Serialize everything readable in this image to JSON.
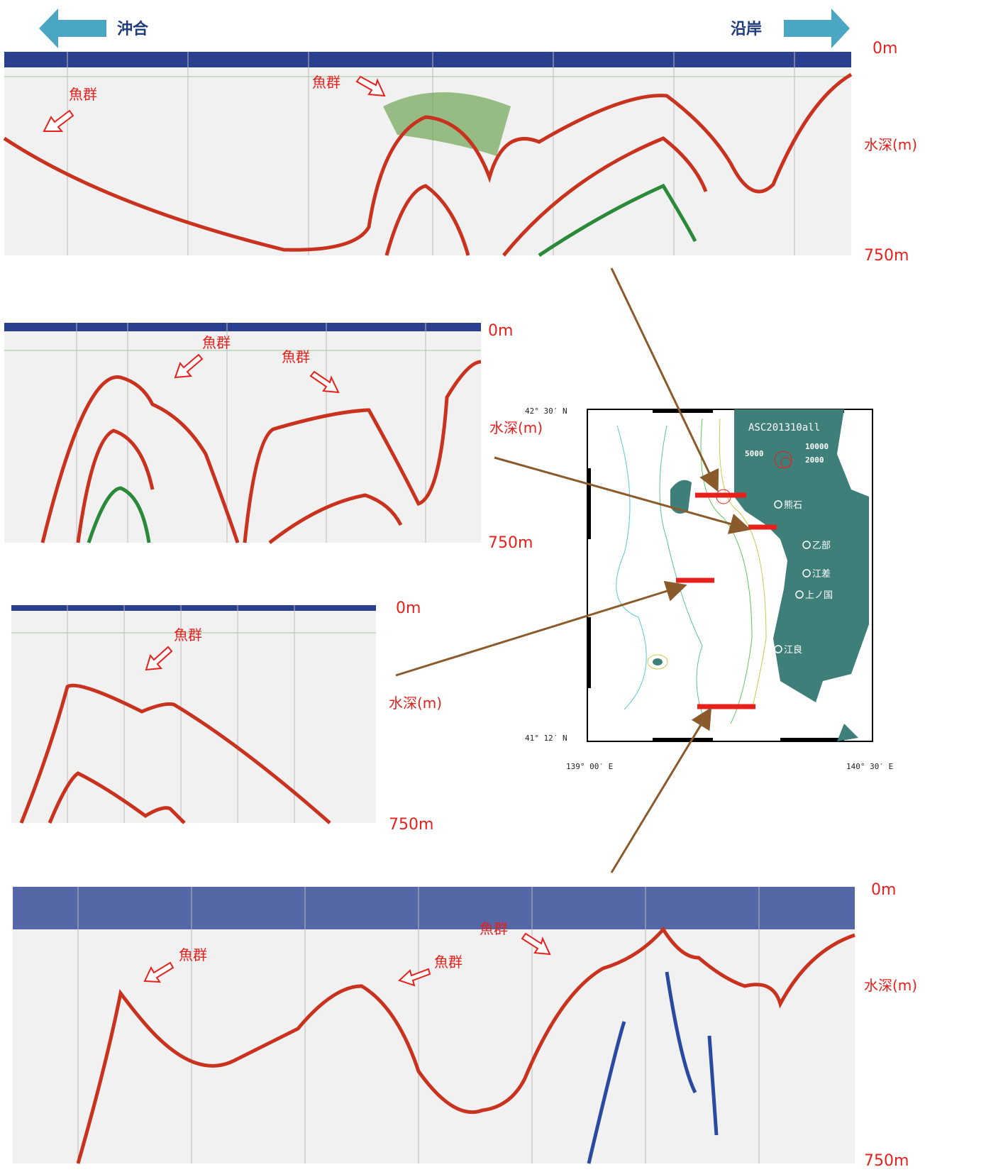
{
  "header": {
    "offshore": "沖合",
    "coast": "沿岸"
  },
  "panels": [
    {
      "depth_top": "0m",
      "depth_label": "水深(m)",
      "depth_bottom": "750m",
      "labels": [
        "魚群",
        "魚群"
      ]
    },
    {
      "depth_top": "0m",
      "depth_label": "水深(m)",
      "depth_bottom": "750m",
      "labels": [
        "魚群",
        "魚群"
      ]
    },
    {
      "depth_top": "0m",
      "depth_label": "水深(m)",
      "depth_bottom": "750m",
      "labels": [
        "魚群"
      ]
    },
    {
      "depth_top": "0m",
      "depth_label": "水深(m)",
      "depth_bottom": "750m",
      "labels": [
        "魚群",
        "魚群",
        "魚群"
      ]
    }
  ],
  "map": {
    "title": "ASC201310all",
    "lat_top": "42° 30′ N",
    "lat_bottom": "41° 12′ N",
    "lon_left": "139° 00′ E",
    "lon_right": "140° 30′ E",
    "scale": [
      "5000",
      "10000",
      "2000"
    ],
    "places": [
      "熊石",
      "乙部",
      "江差",
      "上ノ国",
      "江良"
    ]
  }
}
